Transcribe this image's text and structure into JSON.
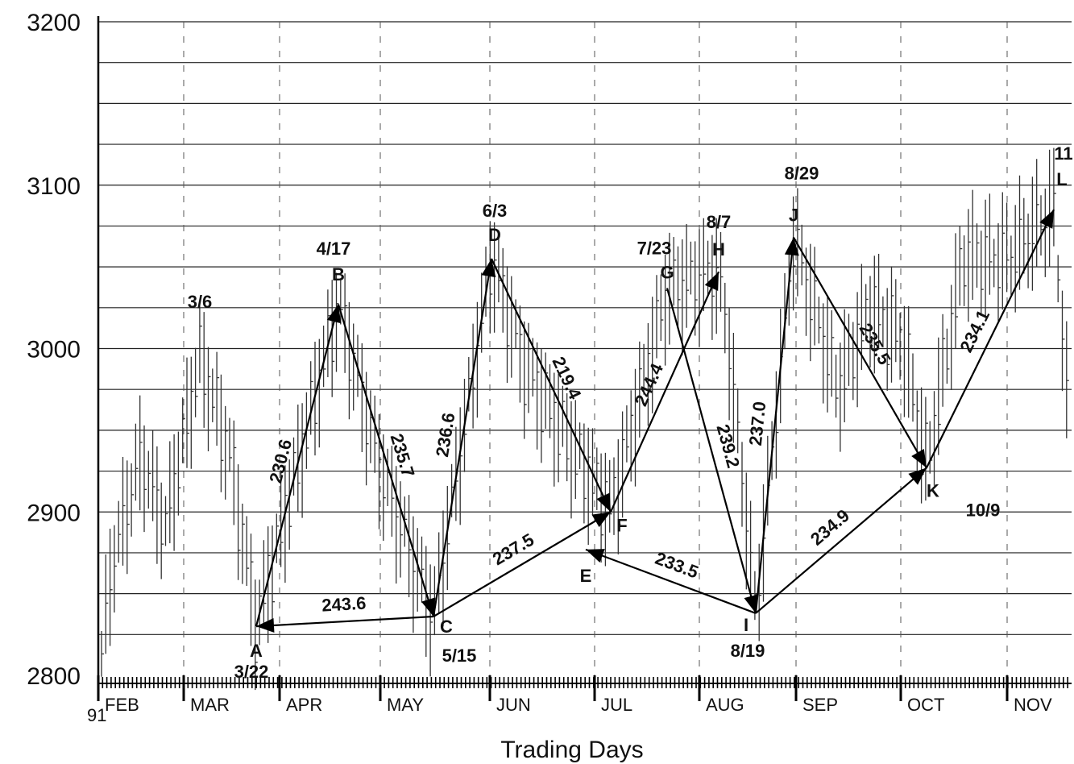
{
  "chart_data": {
    "type": "line",
    "title": "",
    "xlabel": "Trading Days",
    "ylabel": "",
    "ylim": [
      2800,
      3200
    ],
    "yticks": [
      "2800",
      "2900",
      "3000",
      "3100",
      "3200"
    ],
    "year_label": "91",
    "months": [
      "FEB",
      "MAR",
      "APR",
      "MAY",
      "JUN",
      "JUL",
      "AUG",
      "SEP",
      "OCT",
      "NOV"
    ],
    "grid": true,
    "points": [
      {
        "id": "A",
        "date": "3/22",
        "value": 2830
      },
      {
        "id": "B",
        "date": "4/17",
        "value": 3027
      },
      {
        "id": "C",
        "date": "5/15",
        "value": 2836
      },
      {
        "id": "D",
        "date": "6/3",
        "value": 3055
      },
      {
        "id": "E",
        "date": "",
        "value": 2877
      },
      {
        "id": "F",
        "date": "",
        "value": 2900
      },
      {
        "id": "G",
        "date": "7/23",
        "value": 3037
      },
      {
        "id": "H",
        "date": "8/7",
        "value": 3047
      },
      {
        "id": "I",
        "date": "8/19",
        "value": 2838
      },
      {
        "id": "J",
        "date": "8/29",
        "value": 3068
      },
      {
        "id": "K",
        "date": "10/9",
        "value": 2927
      },
      {
        "id": "L",
        "date": "11",
        "value": 3085
      }
    ],
    "extra_labels": [
      "3/6"
    ],
    "segments": [
      {
        "from": "A",
        "to": "B",
        "label": "230.6"
      },
      {
        "from": "B",
        "to": "C",
        "label": "235.7"
      },
      {
        "from": "C",
        "to": "A",
        "label": "243.6"
      },
      {
        "from": "C",
        "to": "D",
        "label": "236.6"
      },
      {
        "from": "C",
        "to": "F",
        "label": "237.5"
      },
      {
        "from": "D",
        "to": "F",
        "label": "219.4"
      },
      {
        "from": "F",
        "to": "H",
        "label": "244.4"
      },
      {
        "from": "G",
        "to": "I",
        "label": "239.2"
      },
      {
        "from": "I",
        "to": "E",
        "label": "233.5"
      },
      {
        "from": "I",
        "to": "J",
        "label": "237.0"
      },
      {
        "from": "I",
        "to": "K",
        "label": "234.9"
      },
      {
        "from": "J",
        "to": "K",
        "label": "235.5"
      },
      {
        "from": "K",
        "to": "L",
        "label": "234.1"
      }
    ]
  }
}
